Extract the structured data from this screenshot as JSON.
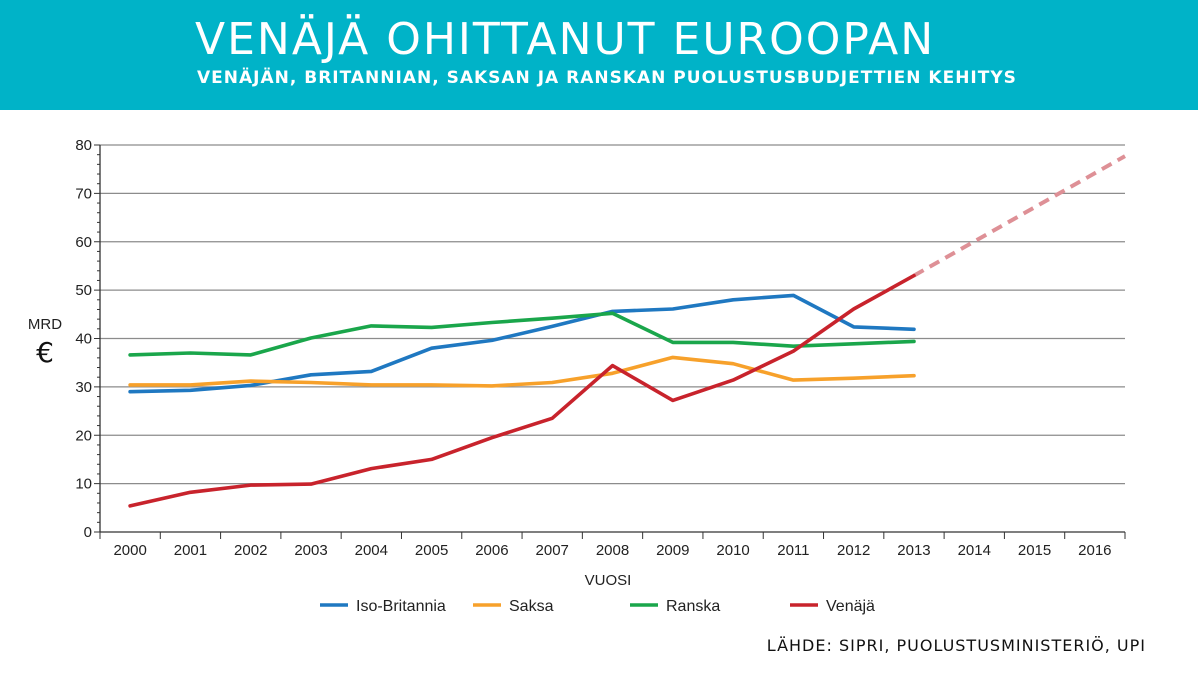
{
  "header": {
    "title": "VENÄJÄ OHITTANUT EUROOPAN",
    "subtitle": "VENÄJÄN, BRITANNIAN, SAKSAN JA RANSKAN PUOLUSTUSBUDJETTIEN KEHITYS"
  },
  "source": "LÄHDE: SIPRI, PUOLUSTUSMINISTERIÖ, UPI",
  "chart_data": {
    "type": "line",
    "title": "VENÄJÄ OHITTANUT EUROOPAN",
    "subtitle": "VENÄJÄN, BRITANNIAN, SAKSAN JA RANSKAN PUOLUSTUSBUDJETTIEN KEHITYS",
    "xlabel": "VUOSI",
    "ylabel": "MRD",
    "ylabel_unit": "€",
    "categories": [
      "2000",
      "2001",
      "2002",
      "2003",
      "2004",
      "2005",
      "2006",
      "2007",
      "2008",
      "2009",
      "2010",
      "2011",
      "2012",
      "2013",
      "2014",
      "2015",
      "2016"
    ],
    "ylim": [
      0,
      80
    ],
    "yticks": [
      0,
      10,
      20,
      30,
      40,
      50,
      60,
      70,
      80
    ],
    "grid": true,
    "legend_position": "bottom",
    "series": [
      {
        "name": "Iso-Britannia",
        "color": "#1f78c1",
        "values": [
          29.0,
          29.3,
          30.3,
          32.5,
          33.2,
          38.0,
          39.6,
          42.5,
          45.6,
          46.1,
          48.0,
          48.9,
          42.4,
          41.9,
          null,
          null,
          null
        ]
      },
      {
        "name": "Saksa",
        "color": "#f7a12b",
        "values": [
          30.4,
          30.4,
          31.2,
          30.9,
          30.4,
          30.4,
          30.2,
          30.9,
          32.8,
          36.1,
          34.8,
          31.4,
          31.8,
          32.3,
          null,
          null,
          null
        ]
      },
      {
        "name": "Ranska",
        "color": "#1aa64b",
        "values": [
          36.6,
          37.0,
          36.6,
          40.1,
          42.6,
          42.3,
          43.3,
          44.2,
          45.2,
          39.2,
          39.2,
          38.4,
          38.9,
          39.4,
          null,
          null,
          null
        ]
      },
      {
        "name": "Venäjä",
        "color": "#c8232c",
        "values": [
          5.4,
          8.2,
          9.7,
          9.9,
          13.1,
          15.0,
          19.5,
          23.5,
          34.4,
          27.2,
          31.4,
          37.4,
          46.1,
          53.0,
          null,
          null,
          null
        ]
      }
    ],
    "projection": {
      "series": "Venäjä",
      "color": "#de9096",
      "style": "dashed",
      "from": {
        "x": "2013",
        "y": 53.0
      },
      "to": {
        "x": "2016.5",
        "y": 77.7
      }
    }
  }
}
